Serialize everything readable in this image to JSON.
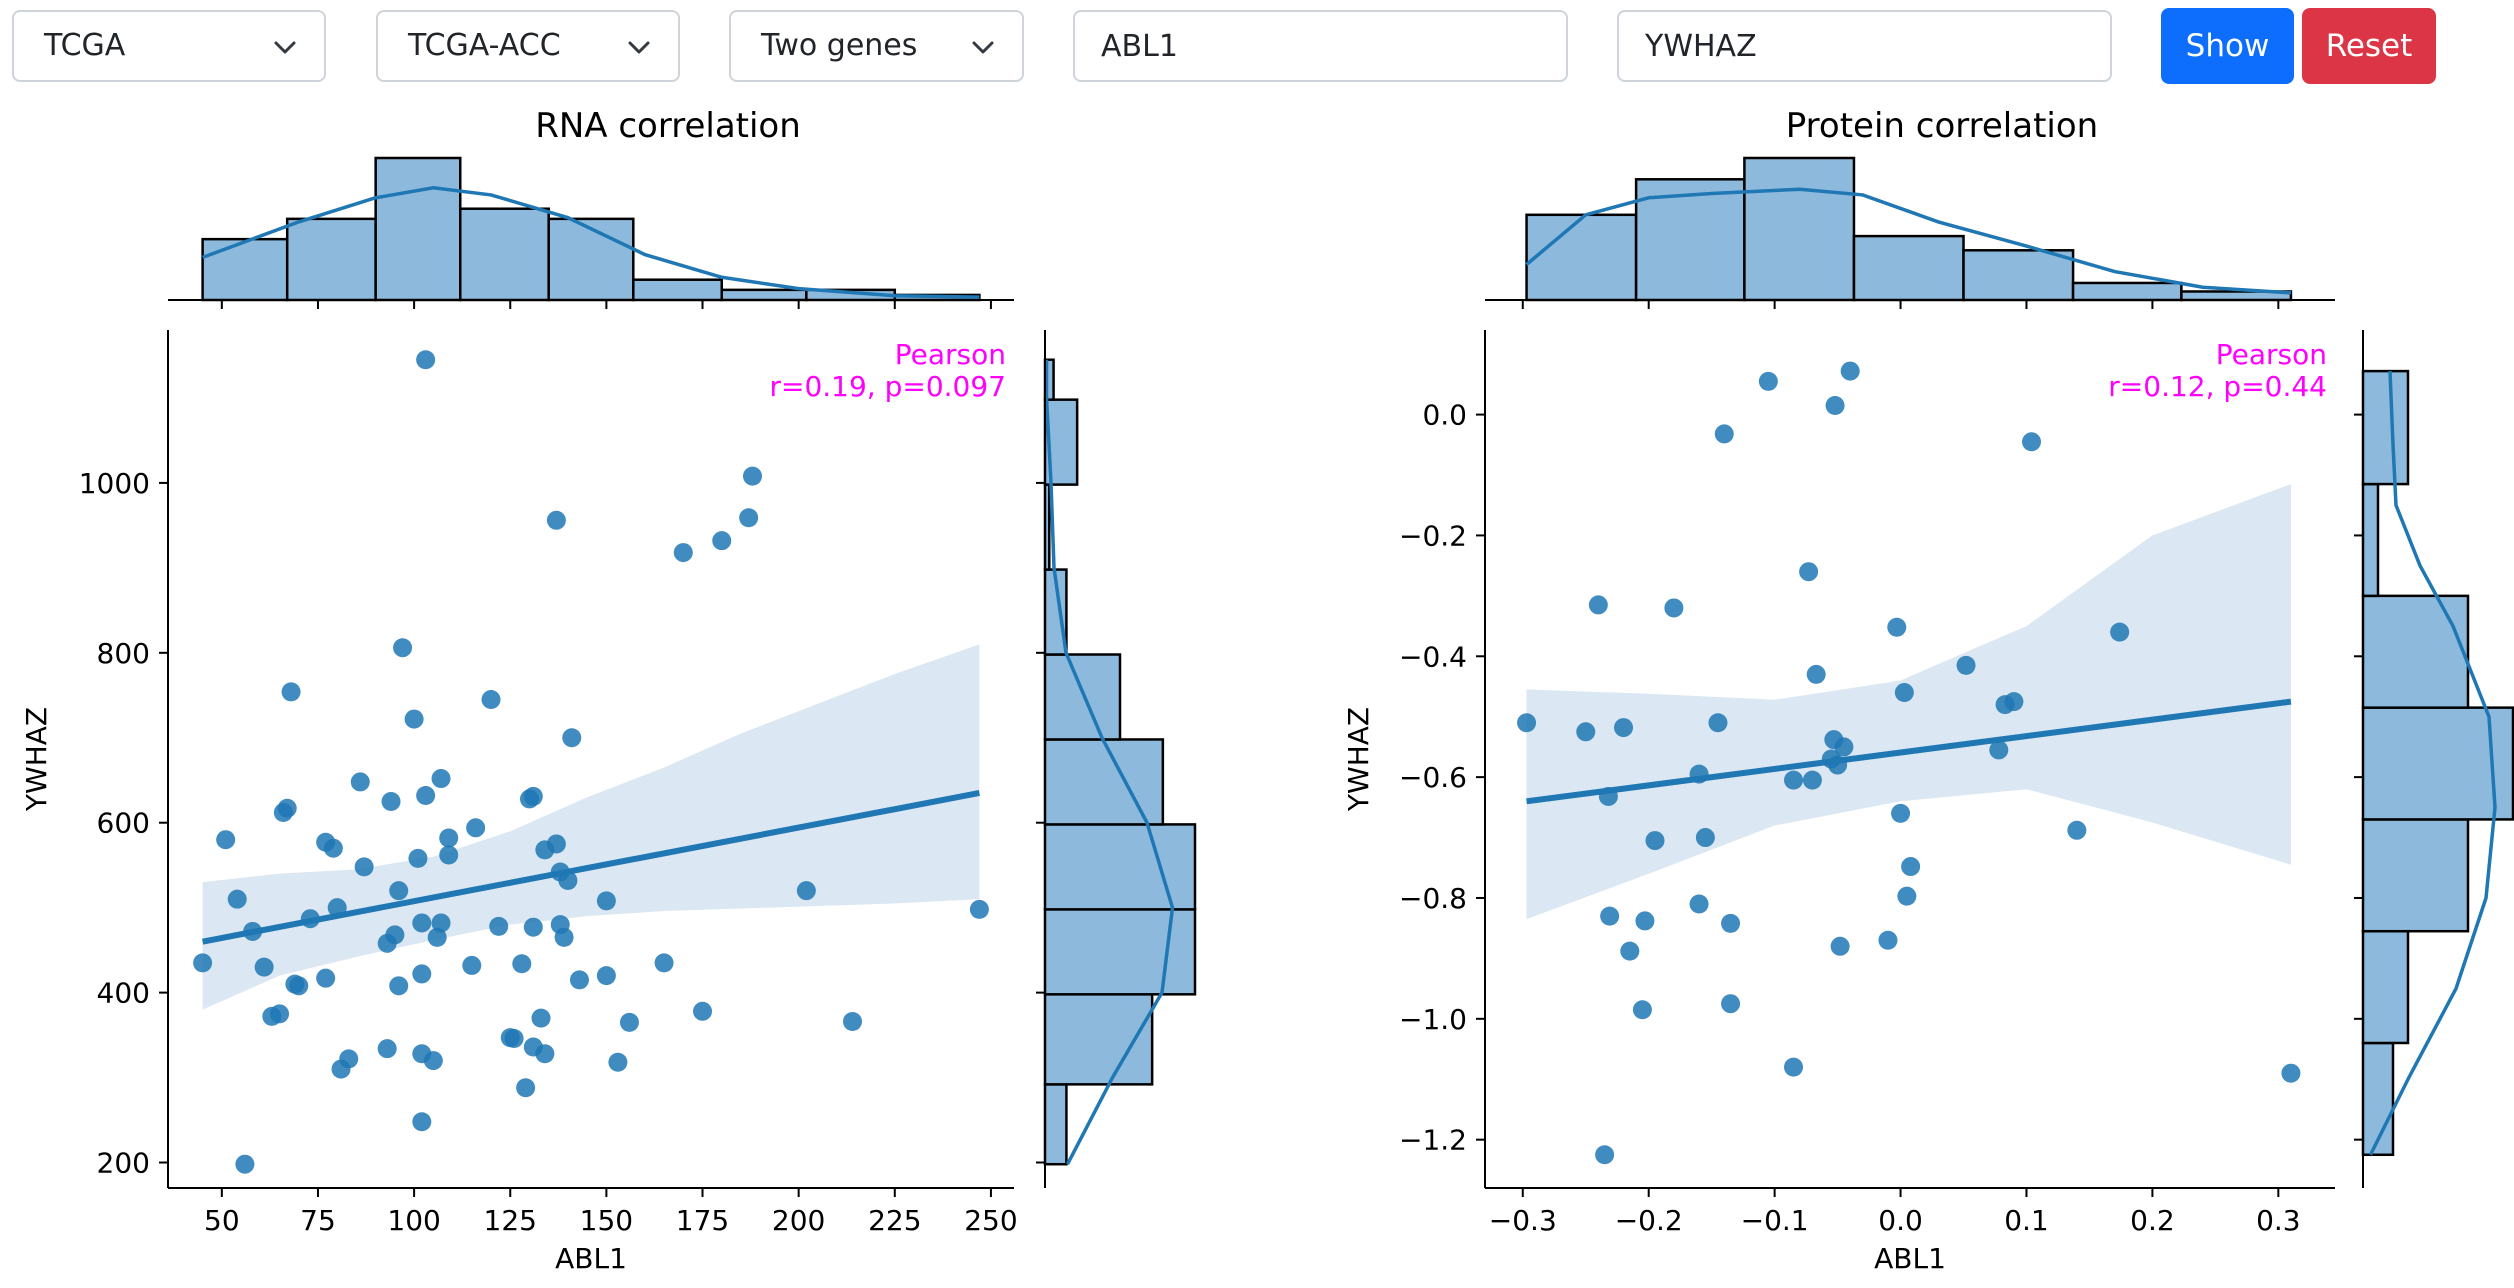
{
  "toolbar": {
    "source_select": "TCGA",
    "cohort_select": "TCGA-ACC",
    "mode_select": "Two genes",
    "gene1_value": "ABL1",
    "gene2_value": "YWHAZ",
    "show_label": "Show",
    "reset_label": "Reset",
    "chevron_icon": "chevron-down-icon"
  },
  "colors": {
    "point": "#1f77b4",
    "hist_fill": "#8db9dc",
    "ci_band": "#dbe7f2",
    "annotation": "#ff00ff",
    "show_button": "#0d6efd",
    "reset_button": "#dc3545"
  },
  "chart_data": [
    {
      "type": "scatter",
      "title": "RNA correlation",
      "xlabel": "ABL1",
      "ylabel": "YWHAZ",
      "xlim": [
        36,
        256
      ],
      "ylim": [
        170,
        1180
      ],
      "xticks": [
        50,
        75,
        100,
        125,
        150,
        175,
        200,
        225,
        250
      ],
      "yticks": [
        200,
        400,
        600,
        800,
        1000
      ],
      "annotation": [
        "Pearson",
        "r=0.19, p=0.097"
      ],
      "points": [
        [
          45,
          435
        ],
        [
          51,
          580
        ],
        [
          54,
          510
        ],
        [
          56,
          198
        ],
        [
          58,
          472
        ],
        [
          61,
          430
        ],
        [
          63,
          372
        ],
        [
          65,
          375
        ],
        [
          66,
          612
        ],
        [
          67,
          617
        ],
        [
          68,
          754
        ],
        [
          69,
          410
        ],
        [
          70,
          408
        ],
        [
          73,
          487
        ],
        [
          77,
          417
        ],
        [
          77,
          577
        ],
        [
          79,
          570
        ],
        [
          80,
          500
        ],
        [
          81,
          310
        ],
        [
          83,
          322
        ],
        [
          86,
          648
        ],
        [
          87,
          548
        ],
        [
          93,
          334
        ],
        [
          93,
          458
        ],
        [
          94,
          625
        ],
        [
          95,
          468
        ],
        [
          96,
          408
        ],
        [
          96,
          520
        ],
        [
          97,
          806
        ],
        [
          100,
          722
        ],
        [
          101,
          558
        ],
        [
          102,
          248
        ],
        [
          102,
          328
        ],
        [
          102,
          422
        ],
        [
          102,
          482
        ],
        [
          103,
          632
        ],
        [
          103,
          1145
        ],
        [
          105,
          320
        ],
        [
          106,
          465
        ],
        [
          107,
          652
        ],
        [
          107,
          482
        ],
        [
          109,
          562
        ],
        [
          109,
          582
        ],
        [
          115,
          432
        ],
        [
          116,
          594
        ],
        [
          120,
          745
        ],
        [
          122,
          478
        ],
        [
          125,
          347
        ],
        [
          126,
          346
        ],
        [
          128,
          434
        ],
        [
          129,
          288
        ],
        [
          130,
          628
        ],
        [
          131,
          631
        ],
        [
          131,
          477
        ],
        [
          131,
          336
        ],
        [
          133,
          370
        ],
        [
          134,
          328
        ],
        [
          134,
          568
        ],
        [
          137,
          575
        ],
        [
          137,
          956
        ],
        [
          138,
          480
        ],
        [
          138,
          542
        ],
        [
          139,
          465
        ],
        [
          140,
          532
        ],
        [
          141,
          700
        ],
        [
          143,
          415
        ],
        [
          150,
          508
        ],
        [
          150,
          420
        ],
        [
          153,
          318
        ],
        [
          156,
          365
        ],
        [
          165,
          435
        ],
        [
          170,
          918
        ],
        [
          175,
          378
        ],
        [
          180,
          932
        ],
        [
          187,
          959
        ],
        [
          188,
          1008
        ],
        [
          202,
          520
        ],
        [
          214,
          366
        ],
        [
          247,
          498
        ]
      ],
      "regression": {
        "x": [
          45,
          247
        ],
        "y": [
          460,
          635
        ]
      },
      "ci_band": {
        "x": [
          45,
          65,
          85,
          105,
          125,
          145,
          165,
          185,
          205,
          225,
          247
        ],
        "upper": [
          530,
          540,
          545,
          560,
          590,
          630,
          665,
          705,
          740,
          775,
          810
        ],
        "lower": [
          380,
          420,
          442,
          462,
          480,
          490,
          496,
          499,
          502,
          505,
          510
        ]
      },
      "hist_x": {
        "edges": [
          45,
          67,
          90,
          112,
          135,
          157,
          180,
          202,
          225,
          247
        ],
        "counts": [
          6,
          8,
          14,
          9,
          8,
          2,
          1,
          1,
          0.5
        ],
        "kde": [
          [
            45,
            0.3
          ],
          [
            70,
            0.55
          ],
          [
            90,
            0.72
          ],
          [
            105,
            0.79
          ],
          [
            120,
            0.74
          ],
          [
            140,
            0.58
          ],
          [
            160,
            0.32
          ],
          [
            180,
            0.16
          ],
          [
            200,
            0.08
          ],
          [
            225,
            0.03
          ],
          [
            247,
            0.02
          ]
        ]
      },
      "hist_y": {
        "edges": [
          198,
          292,
          398,
          498,
          598,
          698,
          798,
          898,
          998,
          1098,
          1145
        ],
        "counts": [
          2,
          10,
          14,
          14,
          11,
          7,
          2,
          0.4,
          3,
          0.8
        ],
        "kde": [
          [
            198,
            0.15
          ],
          [
            300,
            0.45
          ],
          [
            400,
            0.78
          ],
          [
            500,
            0.85
          ],
          [
            600,
            0.68
          ],
          [
            700,
            0.38
          ],
          [
            800,
            0.14
          ],
          [
            900,
            0.06
          ],
          [
            1000,
            0.04
          ],
          [
            1100,
            0.01
          ],
          [
            1145,
            0.01
          ]
        ]
      }
    },
    {
      "type": "scatter",
      "title": "Protein correlation",
      "xlabel": "ABL1",
      "ylabel": "YWHAZ",
      "xlim": [
        -0.33,
        0.345
      ],
      "ylim": [
        -1.28,
        0.14
      ],
      "xticks": [
        -0.3,
        -0.2,
        -0.1,
        0.0,
        0.1,
        0.2,
        0.3
      ],
      "xtick_labels": [
        "−0.3",
        "−0.2",
        "−0.1",
        "0.0",
        "0.1",
        "0.2",
        "0.3"
      ],
      "yticks": [
        0.0,
        -0.2,
        -0.4,
        -0.6,
        -0.8,
        -1.0,
        -1.2
      ],
      "ytick_labels": [
        "0.0",
        "−0.2",
        "−0.4",
        "−0.6",
        "−0.8",
        "−1.0",
        "−1.2"
      ],
      "annotation": [
        "Pearson",
        "r=0.12, p=0.44"
      ],
      "points": [
        [
          -0.297,
          -0.51
        ],
        [
          -0.25,
          -0.525
        ],
        [
          -0.24,
          -0.315
        ],
        [
          -0.235,
          -1.225
        ],
        [
          -0.232,
          -0.632
        ],
        [
          -0.231,
          -0.83
        ],
        [
          -0.22,
          -0.518
        ],
        [
          -0.215,
          -0.888
        ],
        [
          -0.205,
          -0.985
        ],
        [
          -0.203,
          -0.838
        ],
        [
          -0.195,
          -0.705
        ],
        [
          -0.18,
          -0.32
        ],
        [
          -0.16,
          -0.81
        ],
        [
          -0.16,
          -0.595
        ],
        [
          -0.155,
          -0.7
        ],
        [
          -0.145,
          -0.51
        ],
        [
          -0.14,
          -0.032
        ],
        [
          -0.135,
          -0.975
        ],
        [
          -0.135,
          -0.842
        ],
        [
          -0.105,
          0.055
        ],
        [
          -0.085,
          -1.08
        ],
        [
          -0.085,
          -0.605
        ],
        [
          -0.073,
          -0.26
        ],
        [
          -0.07,
          -0.605
        ],
        [
          -0.067,
          -0.43
        ],
        [
          -0.055,
          -0.57
        ],
        [
          -0.053,
          -0.538
        ],
        [
          -0.052,
          0.015
        ],
        [
          -0.05,
          -0.58
        ],
        [
          -0.048,
          -0.88
        ],
        [
          -0.045,
          -0.55
        ],
        [
          -0.04,
          0.072
        ],
        [
          -0.01,
          -0.87
        ],
        [
          -0.003,
          -0.352
        ],
        [
          0.0,
          -0.66
        ],
        [
          0.003,
          -0.46
        ],
        [
          0.005,
          -0.797
        ],
        [
          0.008,
          -0.748
        ],
        [
          0.052,
          -0.415
        ],
        [
          0.078,
          -0.555
        ],
        [
          0.083,
          -0.48
        ],
        [
          0.09,
          -0.475
        ],
        [
          0.104,
          -0.045
        ],
        [
          0.14,
          -0.688
        ],
        [
          0.174,
          -0.36
        ],
        [
          0.31,
          -1.09
        ]
      ],
      "regression": {
        "x": [
          -0.297,
          0.31
        ],
        "y": [
          -0.64,
          -0.475
        ]
      },
      "ci_band": {
        "x": [
          -0.297,
          -0.2,
          -0.1,
          0.0,
          0.1,
          0.2,
          0.31
        ],
        "upper": [
          -0.455,
          -0.462,
          -0.472,
          -0.44,
          -0.35,
          -0.2,
          -0.115
        ],
        "lower": [
          -0.835,
          -0.76,
          -0.68,
          -0.64,
          -0.62,
          -0.675,
          -0.745
        ]
      },
      "hist_x": {
        "edges": [
          -0.297,
          -0.21,
          -0.124,
          -0.037,
          0.05,
          0.137,
          0.223,
          0.31
        ],
        "counts": [
          6,
          8.5,
          10,
          4.5,
          3.5,
          1.2,
          0.6
        ],
        "kde": [
          [
            -0.297,
            0.25
          ],
          [
            -0.25,
            0.6
          ],
          [
            -0.2,
            0.72
          ],
          [
            -0.15,
            0.75
          ],
          [
            -0.08,
            0.78
          ],
          [
            -0.03,
            0.74
          ],
          [
            0.03,
            0.55
          ],
          [
            0.1,
            0.38
          ],
          [
            0.17,
            0.2
          ],
          [
            0.24,
            0.09
          ],
          [
            0.31,
            0.05
          ]
        ]
      },
      "hist_y": {
        "edges": [
          -1.225,
          -1.04,
          -0.855,
          -0.67,
          -0.485,
          -0.3,
          -0.115,
          0.072
        ],
        "counts": [
          2,
          3,
          7,
          10,
          7,
          1,
          3
        ],
        "kde": [
          [
            -1.225,
            0.05
          ],
          [
            -1.1,
            0.3
          ],
          [
            -0.95,
            0.62
          ],
          [
            -0.8,
            0.82
          ],
          [
            -0.65,
            0.88
          ],
          [
            -0.5,
            0.84
          ],
          [
            -0.35,
            0.6
          ],
          [
            -0.25,
            0.38
          ],
          [
            -0.15,
            0.22
          ],
          [
            -0.05,
            0.2
          ],
          [
            0.072,
            0.18
          ]
        ]
      }
    }
  ]
}
